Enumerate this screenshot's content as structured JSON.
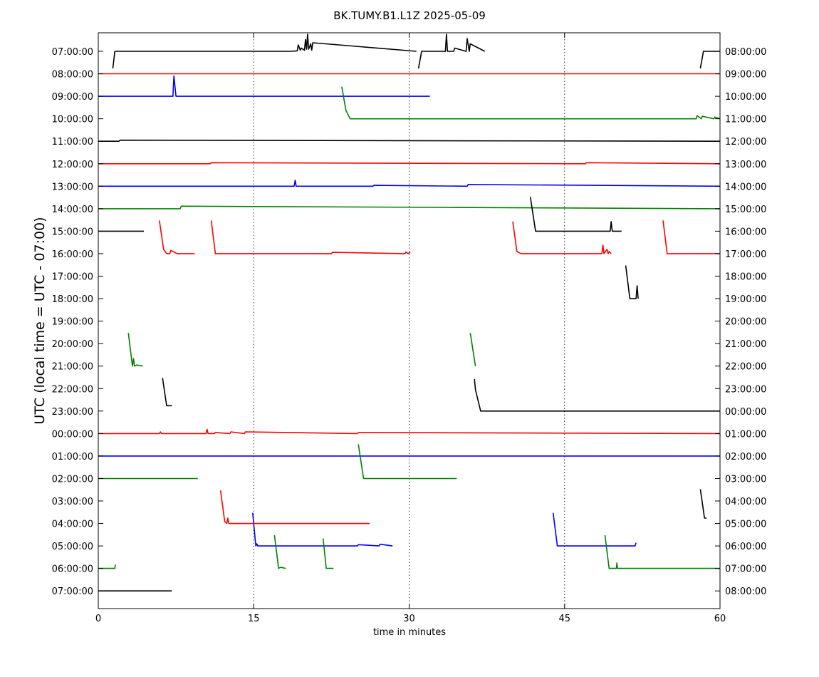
{
  "chart_data": {
    "type": "line",
    "title": "BK.TUMY.B1.L1Z 2025-05-09",
    "xlabel": "time in minutes",
    "ylabel": "UTC (local time = UTC - 07:00)",
    "xlim": [
      0,
      60
    ],
    "x_ticks": [
      0,
      15,
      30,
      45,
      60
    ],
    "grid": "vertical dotted lines at 15, 30, 45",
    "colors": [
      "#000000",
      "#ff0000",
      "#0000ff",
      "#008000"
    ],
    "left_labels": [
      "07:00:00",
      "08:00:00",
      "09:00:00",
      "10:00:00",
      "11:00:00",
      "12:00:00",
      "13:00:00",
      "14:00:00",
      "15:00:00",
      "16:00:00",
      "17:00:00",
      "18:00:00",
      "19:00:00",
      "20:00:00",
      "21:00:00",
      "22:00:00",
      "23:00:00",
      "00:00:00",
      "01:00:00",
      "02:00:00",
      "03:00:00",
      "04:00:00",
      "05:00:00",
      "06:00:00",
      "07:00:00"
    ],
    "right_labels": [
      "08:00:00",
      "09:00:00",
      "10:00:00",
      "11:00:00",
      "12:00:00",
      "13:00:00",
      "14:00:00",
      "15:00:00",
      "16:00:00",
      "17:00:00",
      "18:00:00",
      "19:00:00",
      "20:00:00",
      "21:00:00",
      "22:00:00",
      "23:00:00",
      "00:00:00",
      "01:00:00",
      "02:00:00",
      "03:00:00",
      "04:00:00",
      "05:00:00",
      "06:00:00",
      "07:00:00",
      "08:00:00"
    ],
    "series": [
      {
        "row": 0,
        "color_index": 0,
        "segments": [
          {
            "x": [
              1.4,
              1.6,
              18.5,
              19.2,
              19.3,
              19.5,
              19.6,
              19.9,
              20.0,
              20.1,
              20.2,
              20.3,
              20.5,
              20.6,
              20.7,
              30.7
            ],
            "y": [
              -0.8,
              0,
              0,
              0.02,
              0.3,
              0.05,
              0.15,
              0.05,
              0.55,
              0.1,
              0.8,
              0.1,
              0.35,
              0.05,
              0.4,
              0
            ]
          },
          {
            "x": [
              30.9,
              31.2,
              33.5,
              33.6,
              33.7,
              34.3,
              34.4,
              35.5,
              35.6,
              35.8,
              35.9,
              37.3
            ],
            "y": [
              -0.8,
              0,
              0,
              0.8,
              0,
              0,
              0.15,
              0,
              0.6,
              0,
              0.35,
              0
            ]
          },
          {
            "x": [
              58.1,
              58.4,
              60
            ],
            "y": [
              -0.8,
              0,
              0
            ]
          }
        ]
      },
      {
        "row": 1,
        "color_index": 1,
        "segments": [
          {
            "x": [
              0,
              60
            ],
            "y": [
              0,
              0
            ]
          }
        ]
      },
      {
        "row": 2,
        "color_index": 2,
        "segments": [
          {
            "x": [
              0,
              7.2,
              7.3,
              7.5,
              32
            ],
            "y": [
              0,
              0,
              0.95,
              0,
              0
            ]
          }
        ]
      },
      {
        "row": 3,
        "color_index": 3,
        "segments": [
          {
            "x": [
              23.5,
              23.9,
              24.3,
              57.7,
              57.8,
              58.2,
              58.3,
              59.4,
              59.5,
              60
            ],
            "y": [
              1.5,
              0.4,
              0,
              0,
              0.15,
              0,
              0.12,
              0,
              0.08,
              0
            ]
          }
        ]
      },
      {
        "row": 4,
        "color_index": 0,
        "segments": [
          {
            "x": [
              0,
              2.0,
              2.1,
              60
            ],
            "y": [
              0,
              0,
              0.05,
              0
            ]
          }
        ]
      },
      {
        "row": 5,
        "color_index": 1,
        "segments": [
          {
            "x": [
              0,
              10.8,
              10.9,
              47.0,
              47.1,
              60
            ],
            "y": [
              0,
              0,
              0.05,
              0,
              0.05,
              0
            ]
          }
        ]
      },
      {
        "row": 6,
        "color_index": 2,
        "segments": [
          {
            "x": [
              0,
              18.9,
              19.0,
              19.1,
              26.5,
              26.6,
              35.6,
              35.7,
              60
            ],
            "y": [
              0,
              0,
              0.28,
              0,
              0,
              0.04,
              0,
              0.08,
              0
            ]
          }
        ]
      },
      {
        "row": 7,
        "color_index": 3,
        "segments": [
          {
            "x": [
              0,
              7.9,
              8.0,
              60
            ],
            "y": [
              0,
              0,
              0.12,
              0
            ]
          }
        ]
      },
      {
        "row": 8,
        "color_index": 0,
        "segments": [
          {
            "x": [
              0,
              4.4
            ],
            "y": [
              0,
              0
            ]
          },
          {
            "x": [
              41.7,
              42.2,
              49.4,
              49.5,
              49.6,
              50.5
            ],
            "y": [
              1.6,
              0,
              0,
              0.45,
              0,
              0
            ]
          }
        ]
      },
      {
        "row": 9,
        "color_index": 1,
        "segments": [
          {
            "x": [
              5.9,
              6.3,
              6.6,
              6.9,
              7.0,
              7.6,
              9.3
            ],
            "y": [
              1.55,
              0.2,
              0,
              0,
              0.15,
              0,
              0
            ]
          },
          {
            "x": [
              10.9,
              11.3,
              22.5,
              22.6,
              29.6,
              29.7,
              29.9,
              30.1
            ],
            "y": [
              1.55,
              0,
              0,
              0.06,
              0,
              0.08,
              0,
              0.06
            ]
          },
          {
            "x": [
              40.0,
              40.4,
              40.8,
              48.6,
              48.7,
              48.8,
              49.1,
              49.2,
              49.3,
              49.5
            ],
            "y": [
              1.5,
              0.1,
              0,
              0,
              0.4,
              0,
              0.2,
              0,
              0.1,
              0
            ]
          },
          {
            "x": [
              54.5,
              54.9,
              60
            ],
            "y": [
              1.55,
              0,
              0
            ]
          }
        ]
      },
      {
        "row": 11,
        "color_index": 0,
        "segments": [
          {
            "x": [
              50.9,
              51.3,
              51.9,
              52.0,
              52.1
            ],
            "y": [
              1.55,
              0,
              0,
              0.6,
              0
            ]
          }
        ]
      },
      {
        "row": 14,
        "color_index": 3,
        "segments": [
          {
            "x": [
              2.9,
              3.3,
              3.4,
              3.5,
              3.7,
              4.3
            ],
            "y": [
              1.55,
              0,
              0.35,
              0,
              0.05,
              0
            ]
          }
        ]
      },
      {
        "row": 15,
        "color_index": 0,
        "segments": [
          {
            "x": [
              6.2,
              6.6,
              7.1
            ],
            "y": [
              0.5,
              -0.8,
              -0.8
            ]
          }
        ]
      },
      {
        "row": 14,
        "color_index": 3,
        "segments": [
          {
            "x": [
              35.9,
              36.4
            ],
            "y": [
              1.55,
              0
            ]
          }
        ]
      },
      {
        "row": 16,
        "color_index": 0,
        "segments": [
          {
            "x": [
              36.3,
              36.4,
              36.9,
              60
            ],
            "y": [
              1.5,
              1.0,
              0,
              0
            ]
          }
        ]
      },
      {
        "row": 17,
        "color_index": 1,
        "segments": [
          {
            "x": [
              0,
              5.9,
              6.0,
              6.1,
              10.4,
              10.5,
              10.6,
              11.2,
              11.3,
              12.7,
              12.8,
              14.1,
              14.2,
              25.0,
              25.1,
              60
            ],
            "y": [
              0,
              0,
              0.08,
              0,
              0,
              0.2,
              0,
              0,
              0.05,
              0,
              0.08,
              0,
              0.08,
              0,
              0.05,
              0
            ]
          }
        ]
      },
      {
        "row": 18,
        "color_index": 2,
        "segments": [
          {
            "x": [
              0,
              60
            ],
            "y": [
              0,
              0
            ]
          }
        ]
      },
      {
        "row": 19,
        "color_index": 3,
        "segments": [
          {
            "x": [
              0,
              9.6
            ],
            "y": [
              0,
              0
            ]
          },
          {
            "x": [
              25.1,
              25.6,
              34.6
            ],
            "y": [
              1.6,
              0,
              0
            ]
          }
        ]
      },
      {
        "row": 20,
        "color_index": 0,
        "segments": [
          {
            "x": [
              58.1,
              58.5,
              58.7
            ],
            "y": [
              0.55,
              -0.8,
              -0.8
            ]
          }
        ]
      },
      {
        "row": 21,
        "color_index": 1,
        "segments": [
          {
            "x": [
              11.8,
              12.2,
              12.4,
              12.5,
              12.6,
              26.2
            ],
            "y": [
              1.55,
              0.1,
              0,
              0.25,
              0,
              0
            ]
          }
        ]
      },
      {
        "row": 22,
        "color_index": 2,
        "segments": [
          {
            "x": [
              14.9,
              15.2,
              15.3,
              15.4,
              25.0,
              25.1,
              27.1,
              27.2,
              28.4
            ],
            "y": [
              1.55,
              0,
              0.1,
              0,
              0,
              0.06,
              0,
              0.08,
              0
            ]
          },
          {
            "x": [
              43.9,
              44.3,
              51.8,
              51.9
            ],
            "y": [
              1.55,
              0,
              0,
              0.15
            ]
          }
        ]
      },
      {
        "row": 23,
        "color_index": 3,
        "segments": [
          {
            "x": [
              0,
              1.6,
              1.65
            ],
            "y": [
              0,
              0,
              0.18
            ]
          },
          {
            "x": [
              17.0,
              17.4,
              17.6,
              18.1
            ],
            "y": [
              1.55,
              0,
              0.05,
              0
            ]
          },
          {
            "x": [
              21.7,
              22.0,
              22.7
            ],
            "y": [
              1.4,
              0,
              0
            ]
          },
          {
            "x": [
              48.9,
              49.3,
              50.0,
              50.05,
              50.1,
              60
            ],
            "y": [
              1.55,
              0,
              0,
              0.25,
              0,
              0
            ]
          }
        ]
      },
      {
        "row": 24,
        "color_index": 0,
        "segments": [
          {
            "x": [
              0,
              7.1
            ],
            "y": [
              0,
              0
            ]
          }
        ]
      }
    ]
  }
}
